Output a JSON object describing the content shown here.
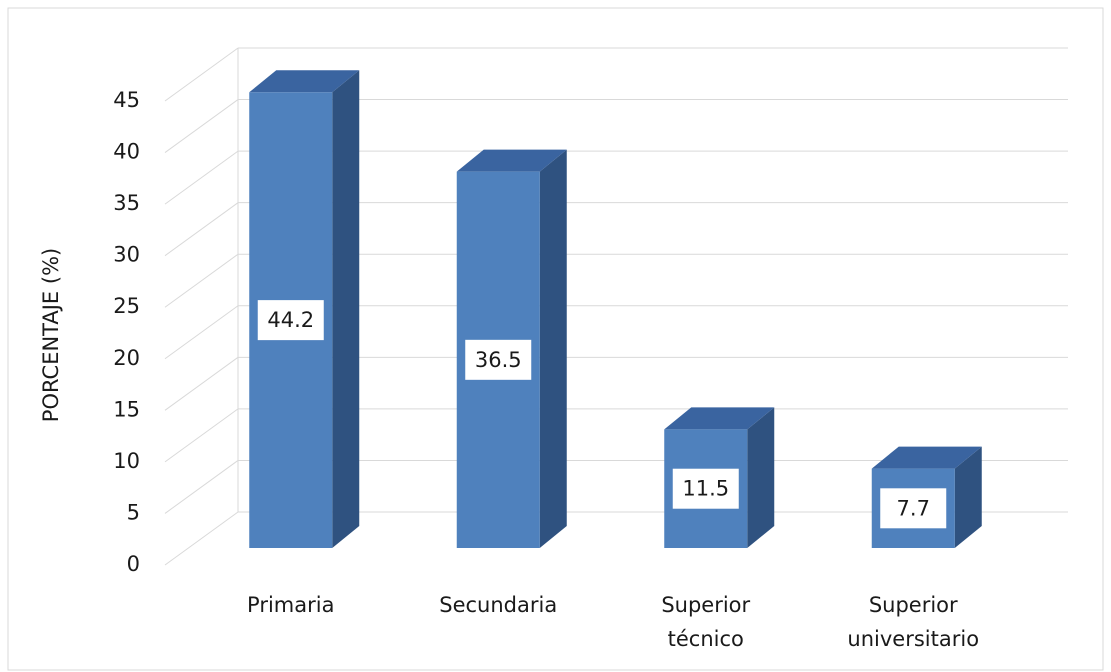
{
  "chart_data": {
    "type": "bar3d",
    "y_label": "PORCENTAJE (%)",
    "categories": [
      "Primaria",
      "Secundaria",
      "Superior técnico",
      "Superior universitario"
    ],
    "values": [
      44.2,
      36.5,
      11.5,
      7.7
    ],
    "color": "#4f81bd",
    "ylim": [
      0,
      45
    ],
    "yticks": [
      0,
      5,
      10,
      15,
      20,
      25,
      30,
      35,
      40,
      45
    ],
    "grid": true
  }
}
